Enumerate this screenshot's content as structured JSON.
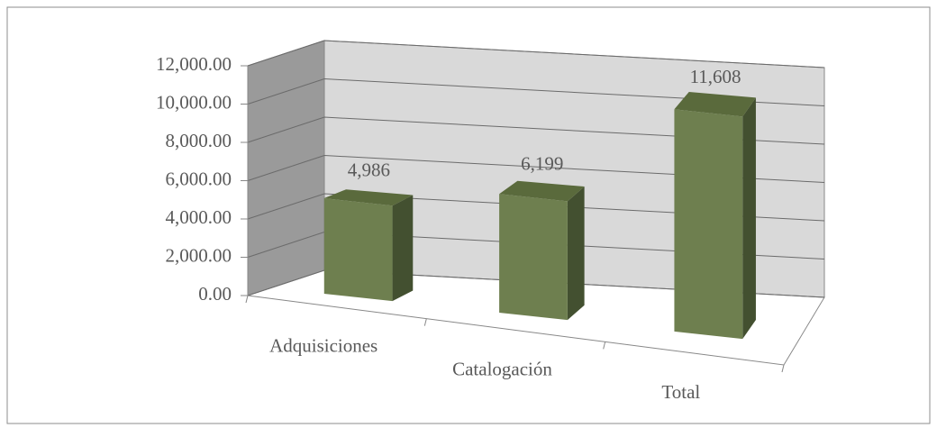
{
  "chart_data": {
    "type": "bar3d",
    "categories": [
      "Adquisiciones",
      "Catalogación",
      "Total"
    ],
    "values": [
      4986,
      6199,
      11608
    ],
    "value_labels": [
      "4,986",
      "6,199",
      "11,608"
    ],
    "color": "#6e7f4f",
    "ylim": [
      0,
      12000
    ],
    "yticks": [
      {
        "value": 0,
        "label": "0.00"
      },
      {
        "value": 2000,
        "label": "2,000.00"
      },
      {
        "value": 4000,
        "label": "4,000.00"
      },
      {
        "value": 6000,
        "label": "6,000.00"
      },
      {
        "value": 8000,
        "label": "8,000.00"
      },
      {
        "value": 10000,
        "label": "10,000.00"
      },
      {
        "value": 12000,
        "label": "12,000.00"
      }
    ],
    "grid": true
  }
}
